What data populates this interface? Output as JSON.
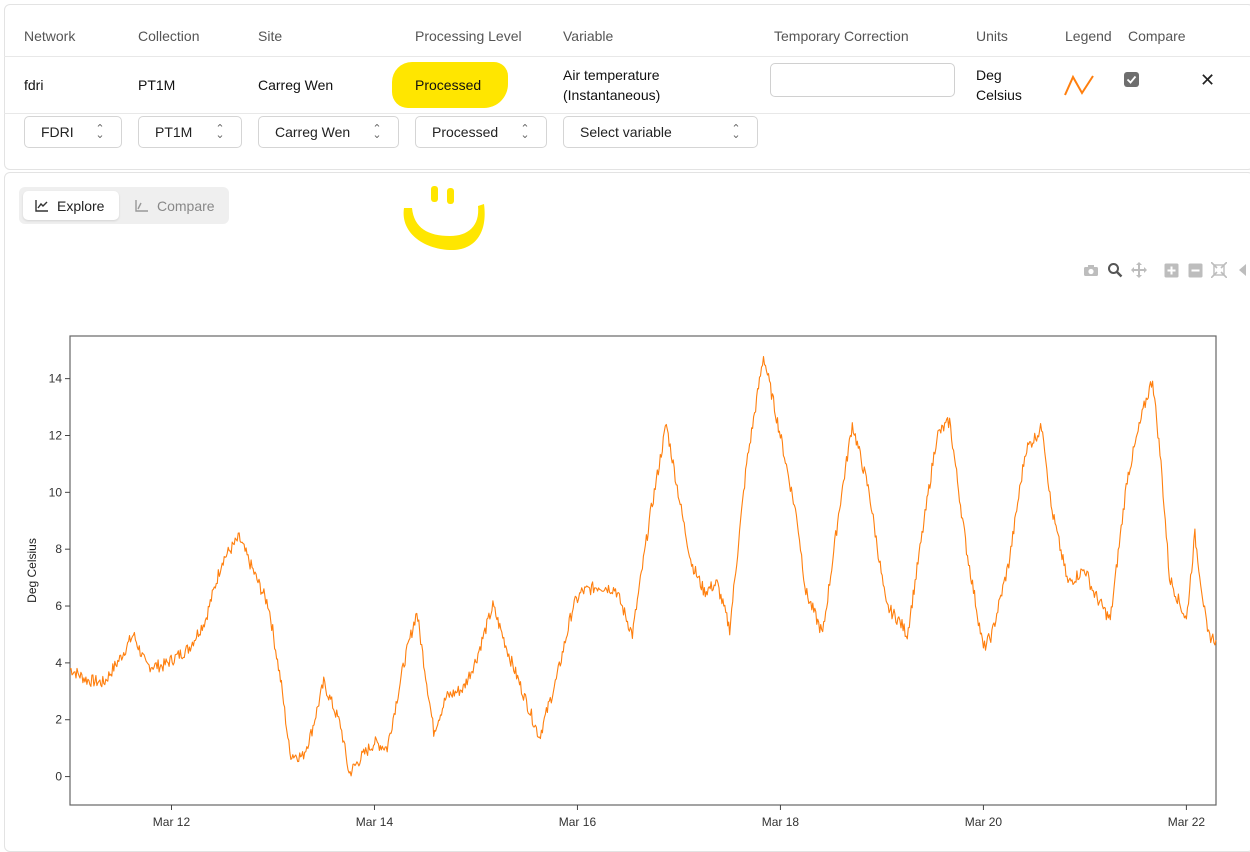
{
  "table": {
    "headers": {
      "network": "Network",
      "collection": "Collection",
      "site": "Site",
      "processing_level": "Processing Level",
      "variable": "Variable",
      "temporary_correction": "Temporary Correction",
      "units": "Units",
      "legend": "Legend",
      "compare": "Compare"
    },
    "row": {
      "network": "fdri",
      "collection": "PT1M",
      "site": "Carreg Wen",
      "processing_level": "Processed",
      "variable_line1": "Air temperature",
      "variable_line2": "(Instantaneous)",
      "temporary_correction": "",
      "units_line1": "Deg",
      "units_line2": "Celsius",
      "legend_color": "#ff7f0e",
      "compare_checked": true,
      "remove_glyph": "✕"
    }
  },
  "selectors": {
    "network": "FDRI",
    "collection": "PT1M",
    "site": "Carreg Wen",
    "processing_level": "Processed",
    "variable": "Select variable"
  },
  "tabs": {
    "explore": "Explore",
    "compare": "Compare",
    "active": "explore"
  },
  "modebar": [
    "camera-icon",
    "zoom-icon",
    "pan-icon",
    "zoom-in-icon",
    "zoom-out-icon",
    "autoscale-icon",
    "reset-icon"
  ],
  "colors": {
    "highlight": "#ffe600",
    "series": "#ff7f0e"
  },
  "chart_data": {
    "type": "line",
    "title": "",
    "xlabel": "",
    "ylabel": "Deg Celsius",
    "x_range": [
      "2025-03-11 00:00",
      "2025-03-22 07:00"
    ],
    "ylim": [
      -1,
      15.5
    ],
    "yticks": [
      0,
      2,
      4,
      6,
      8,
      10,
      12,
      14
    ],
    "xticks": [
      {
        "t": "2025-03-12",
        "label": "Mar 12"
      },
      {
        "t": "2025-03-14",
        "label": "Mar 14"
      },
      {
        "t": "2025-03-16",
        "label": "Mar 16"
      },
      {
        "t": "2025-03-18",
        "label": "Mar 18"
      },
      {
        "t": "2025-03-20",
        "label": "Mar 20"
      },
      {
        "t": "2025-03-22",
        "label": "Mar 22"
      }
    ],
    "grid": false,
    "series": [
      {
        "color": "#ff7f0e",
        "x": [
          "2025-03-11 00:00",
          "2025-03-11 04:00",
          "2025-03-11 08:00",
          "2025-03-11 12:00",
          "2025-03-11 15:00",
          "2025-03-11 18:00",
          "2025-03-11 22:00",
          "2025-03-12 04:00",
          "2025-03-12 08:00",
          "2025-03-12 12:00",
          "2025-03-12 16:00",
          "2025-03-12 20:00",
          "2025-03-12 23:00",
          "2025-03-13 02:00",
          "2025-03-13 04:00",
          "2025-03-13 07:00",
          "2025-03-13 09:00",
          "2025-03-13 12:00",
          "2025-03-13 16:00",
          "2025-03-13 18:00",
          "2025-03-13 21:00",
          "2025-03-14 00:00",
          "2025-03-14 03:00",
          "2025-03-14 07:00",
          "2025-03-14 10:00",
          "2025-03-14 14:00",
          "2025-03-14 17:00",
          "2025-03-14 21:00",
          "2025-03-15 00:00",
          "2025-03-15 04:00",
          "2025-03-15 08:00",
          "2025-03-15 11:00",
          "2025-03-15 15:00",
          "2025-03-15 19:00",
          "2025-03-15 23:00",
          "2025-03-16 01:00",
          "2025-03-16 05:00",
          "2025-03-16 09:00",
          "2025-03-16 13:00",
          "2025-03-16 17:00",
          "2025-03-16 21:00",
          "2025-03-17 01:00",
          "2025-03-17 03:00",
          "2025-03-17 06:00",
          "2025-03-17 09:00",
          "2025-03-17 12:00",
          "2025-03-17 16:00",
          "2025-03-17 20:00",
          "2025-03-18 00:00",
          "2025-03-18 04:00",
          "2025-03-18 06:00",
          "2025-03-18 10:00",
          "2025-03-18 14:00",
          "2025-03-18 17:00",
          "2025-03-18 21:00",
          "2025-03-19 01:00",
          "2025-03-19 04:00",
          "2025-03-19 06:00",
          "2025-03-19 09:00",
          "2025-03-19 13:00",
          "2025-03-19 16:00",
          "2025-03-19 20:00",
          "2025-03-20 00:00",
          "2025-03-20 02:00",
          "2025-03-20 06:00",
          "2025-03-20 10:00",
          "2025-03-20 14:00",
          "2025-03-20 16:00",
          "2025-03-20 20:00",
          "2025-03-21 00:00",
          "2025-03-21 02:00",
          "2025-03-21 06:00",
          "2025-03-21 10:00",
          "2025-03-21 14:00",
          "2025-03-21 16:00",
          "2025-03-21 18:00",
          "2025-03-21 20:00",
          "2025-03-22 00:00",
          "2025-03-22 02:00",
          "2025-03-22 05:00",
          "2025-03-22 07:00"
        ],
        "y": [
          3.8,
          3.4,
          3.3,
          4.2,
          5.0,
          3.9,
          3.9,
          4.5,
          5.5,
          7.6,
          8.4,
          7.0,
          6.0,
          3.2,
          0.8,
          0.7,
          1.5,
          3.3,
          1.8,
          0.1,
          0.7,
          1.2,
          1.0,
          4.0,
          5.8,
          1.6,
          2.8,
          3.1,
          4.1,
          6.0,
          4.2,
          3.0,
          1.4,
          3.4,
          6.0,
          6.5,
          6.7,
          6.6,
          5.0,
          9.0,
          12.4,
          9.0,
          7.5,
          6.5,
          6.8,
          5.2,
          11.0,
          14.8,
          12.0,
          9.0,
          6.5,
          5.0,
          9.5,
          12.4,
          10.0,
          6.0,
          5.5,
          5.0,
          8.0,
          12.0,
          12.5,
          8.0,
          4.5,
          5.0,
          7.5,
          11.5,
          12.3,
          9.5,
          6.8,
          7.3,
          6.5,
          5.5,
          10.5,
          13.0,
          14.0,
          11.0,
          7.0,
          5.5,
          8.5,
          5.0,
          4.8
        ]
      }
    ]
  }
}
